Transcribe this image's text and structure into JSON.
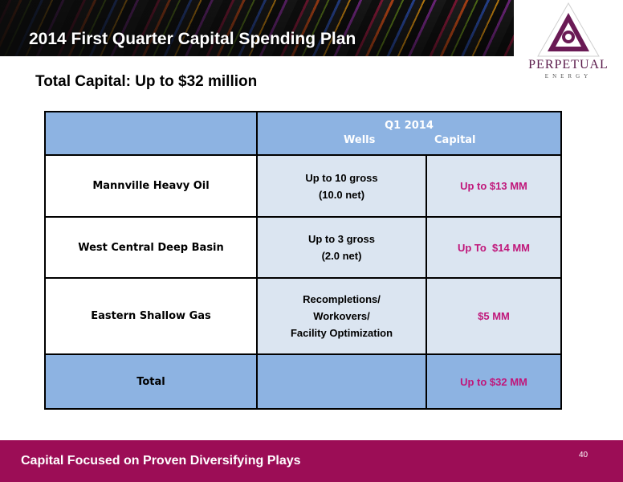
{
  "slide": {
    "title": "2014 First Quarter Capital Spending Plan",
    "subtitle": "Total Capital: Up to $32 million",
    "logo": {
      "name": "PERPETUAL",
      "sub": "ENERGY"
    }
  },
  "table": {
    "header": {
      "period": "Q1 2014",
      "wells": "Wells",
      "capital": "Capital"
    },
    "rows": [
      {
        "label": "Mannville Heavy Oil",
        "wells_lines": [
          "Up to 10 gross",
          "(10.0 net)"
        ],
        "capital": "Up to $13 MM"
      },
      {
        "label": "West Central Deep Basin",
        "wells_lines": [
          "Up to 3 gross",
          "(2.0 net)"
        ],
        "capital": "Up To  $14 MM"
      },
      {
        "label": "Eastern Shallow Gas",
        "wells_lines": [
          "Recompletions/",
          "Workovers/",
          "Facility Optimization"
        ],
        "capital": "$5 MM"
      }
    ],
    "total": {
      "label": "Total",
      "wells": "",
      "capital": "Up to $32 MM"
    }
  },
  "footer": {
    "text": "Capital Focused on Proven Diversifying Plays",
    "page": "40"
  },
  "colors": {
    "accent": "#9c0d56",
    "table_header": "#8db3e2",
    "table_body": "#dbe5f1",
    "capital_text": "#c0167a"
  }
}
